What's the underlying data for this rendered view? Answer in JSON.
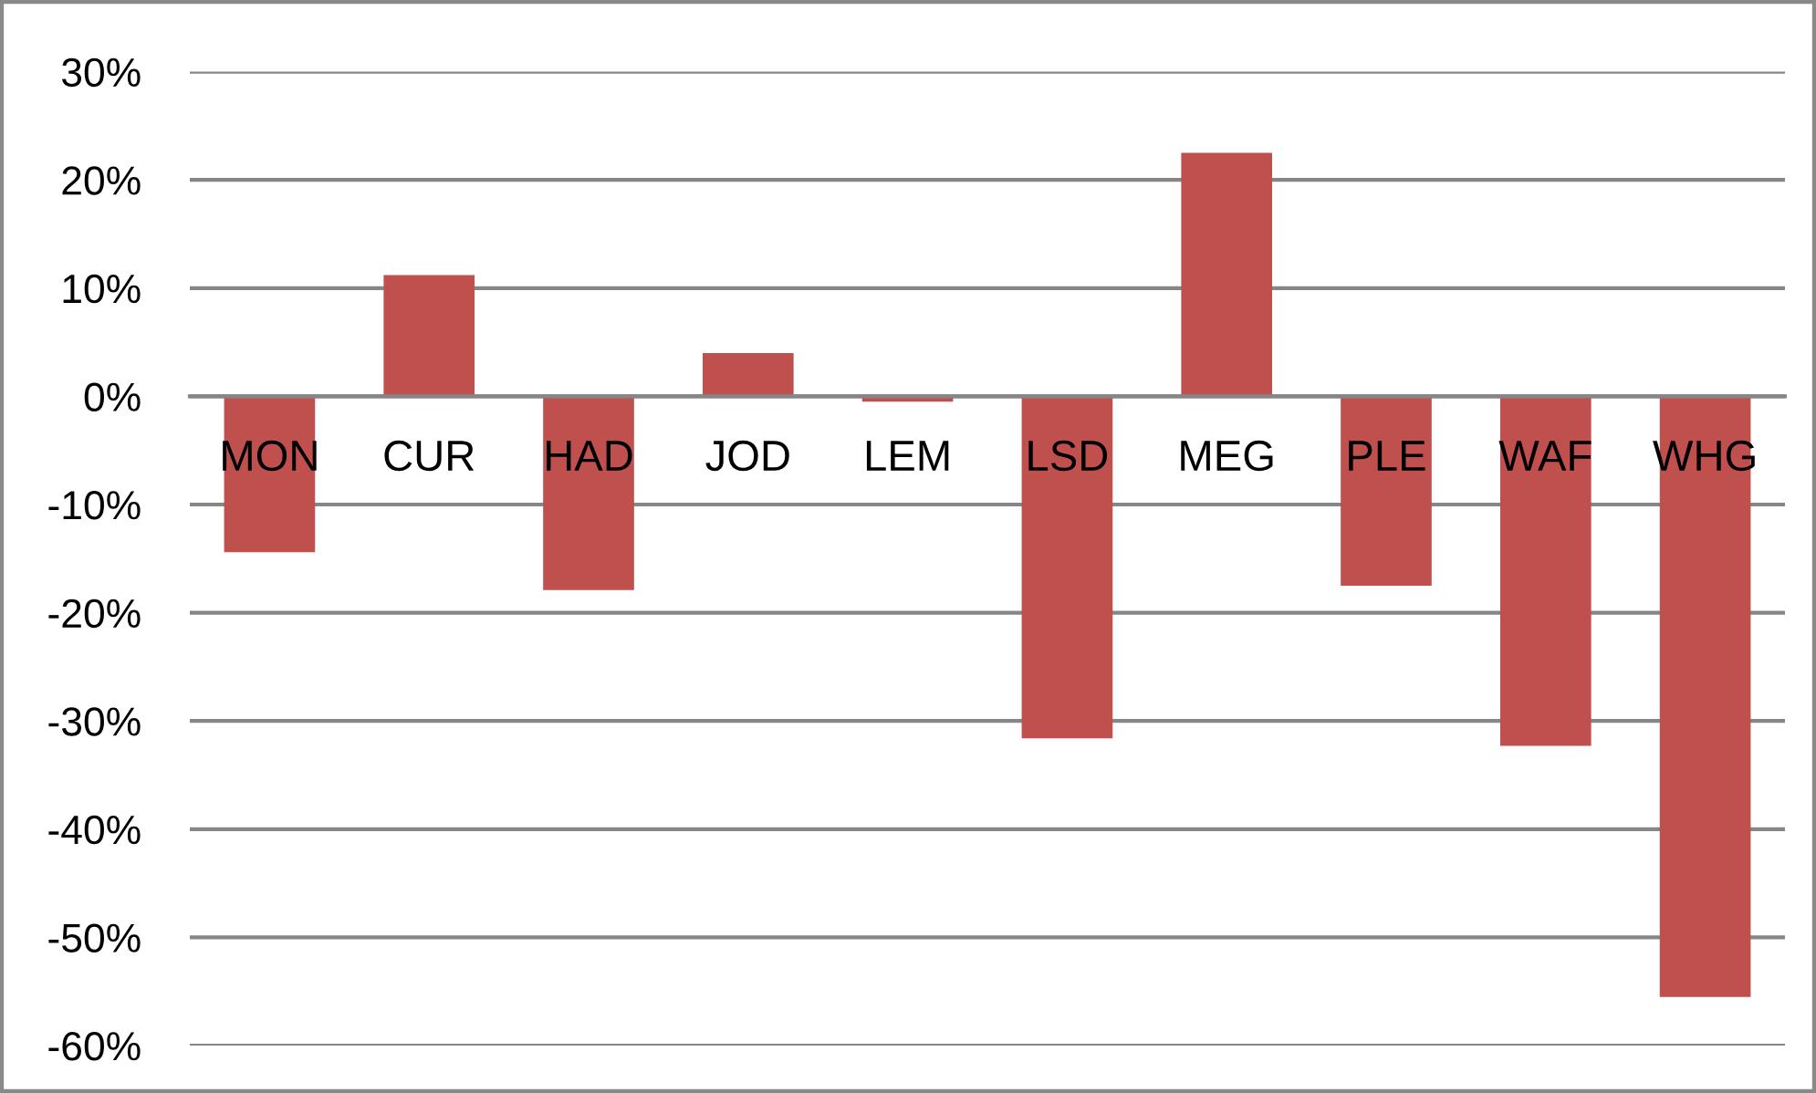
{
  "chart_data": {
    "type": "bar",
    "categories": [
      "MON",
      "CUR",
      "HAD",
      "JOD",
      "LEM",
      "LSD",
      "MEG",
      "PLE",
      "WAF",
      "WHG"
    ],
    "values": [
      -14.4,
      11.2,
      -17.9,
      4.0,
      -0.5,
      -31.6,
      22.5,
      -17.5,
      -32.3,
      -55.5
    ],
    "color": "#c0504d",
    "ylim": [
      -60,
      30
    ],
    "yticks": [
      {
        "value": -60,
        "label": "-60%"
      },
      {
        "value": -50,
        "label": "-50%"
      },
      {
        "value": -40,
        "label": "-40%"
      },
      {
        "value": -30,
        "label": "-30%"
      },
      {
        "value": -20,
        "label": "-20%"
      },
      {
        "value": -10,
        "label": "-10%"
      },
      {
        "value": 0,
        "label": "0%"
      },
      {
        "value": 10,
        "label": "10%"
      },
      {
        "value": 20,
        "label": "20%"
      },
      {
        "value": 30,
        "label": "30%"
      }
    ],
    "grid": "y"
  }
}
